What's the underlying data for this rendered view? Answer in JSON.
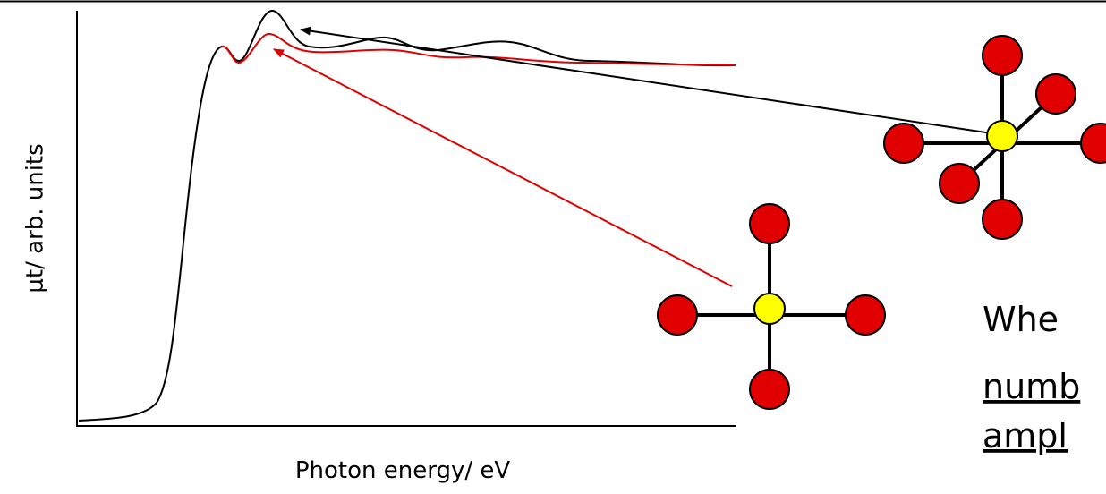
{
  "axes": {
    "y_label": "μt/ arb. units",
    "x_label": "Photon energy/ eV"
  },
  "text": {
    "lines": [
      "Whe",
      "numb",
      "ampl"
    ]
  }
}
